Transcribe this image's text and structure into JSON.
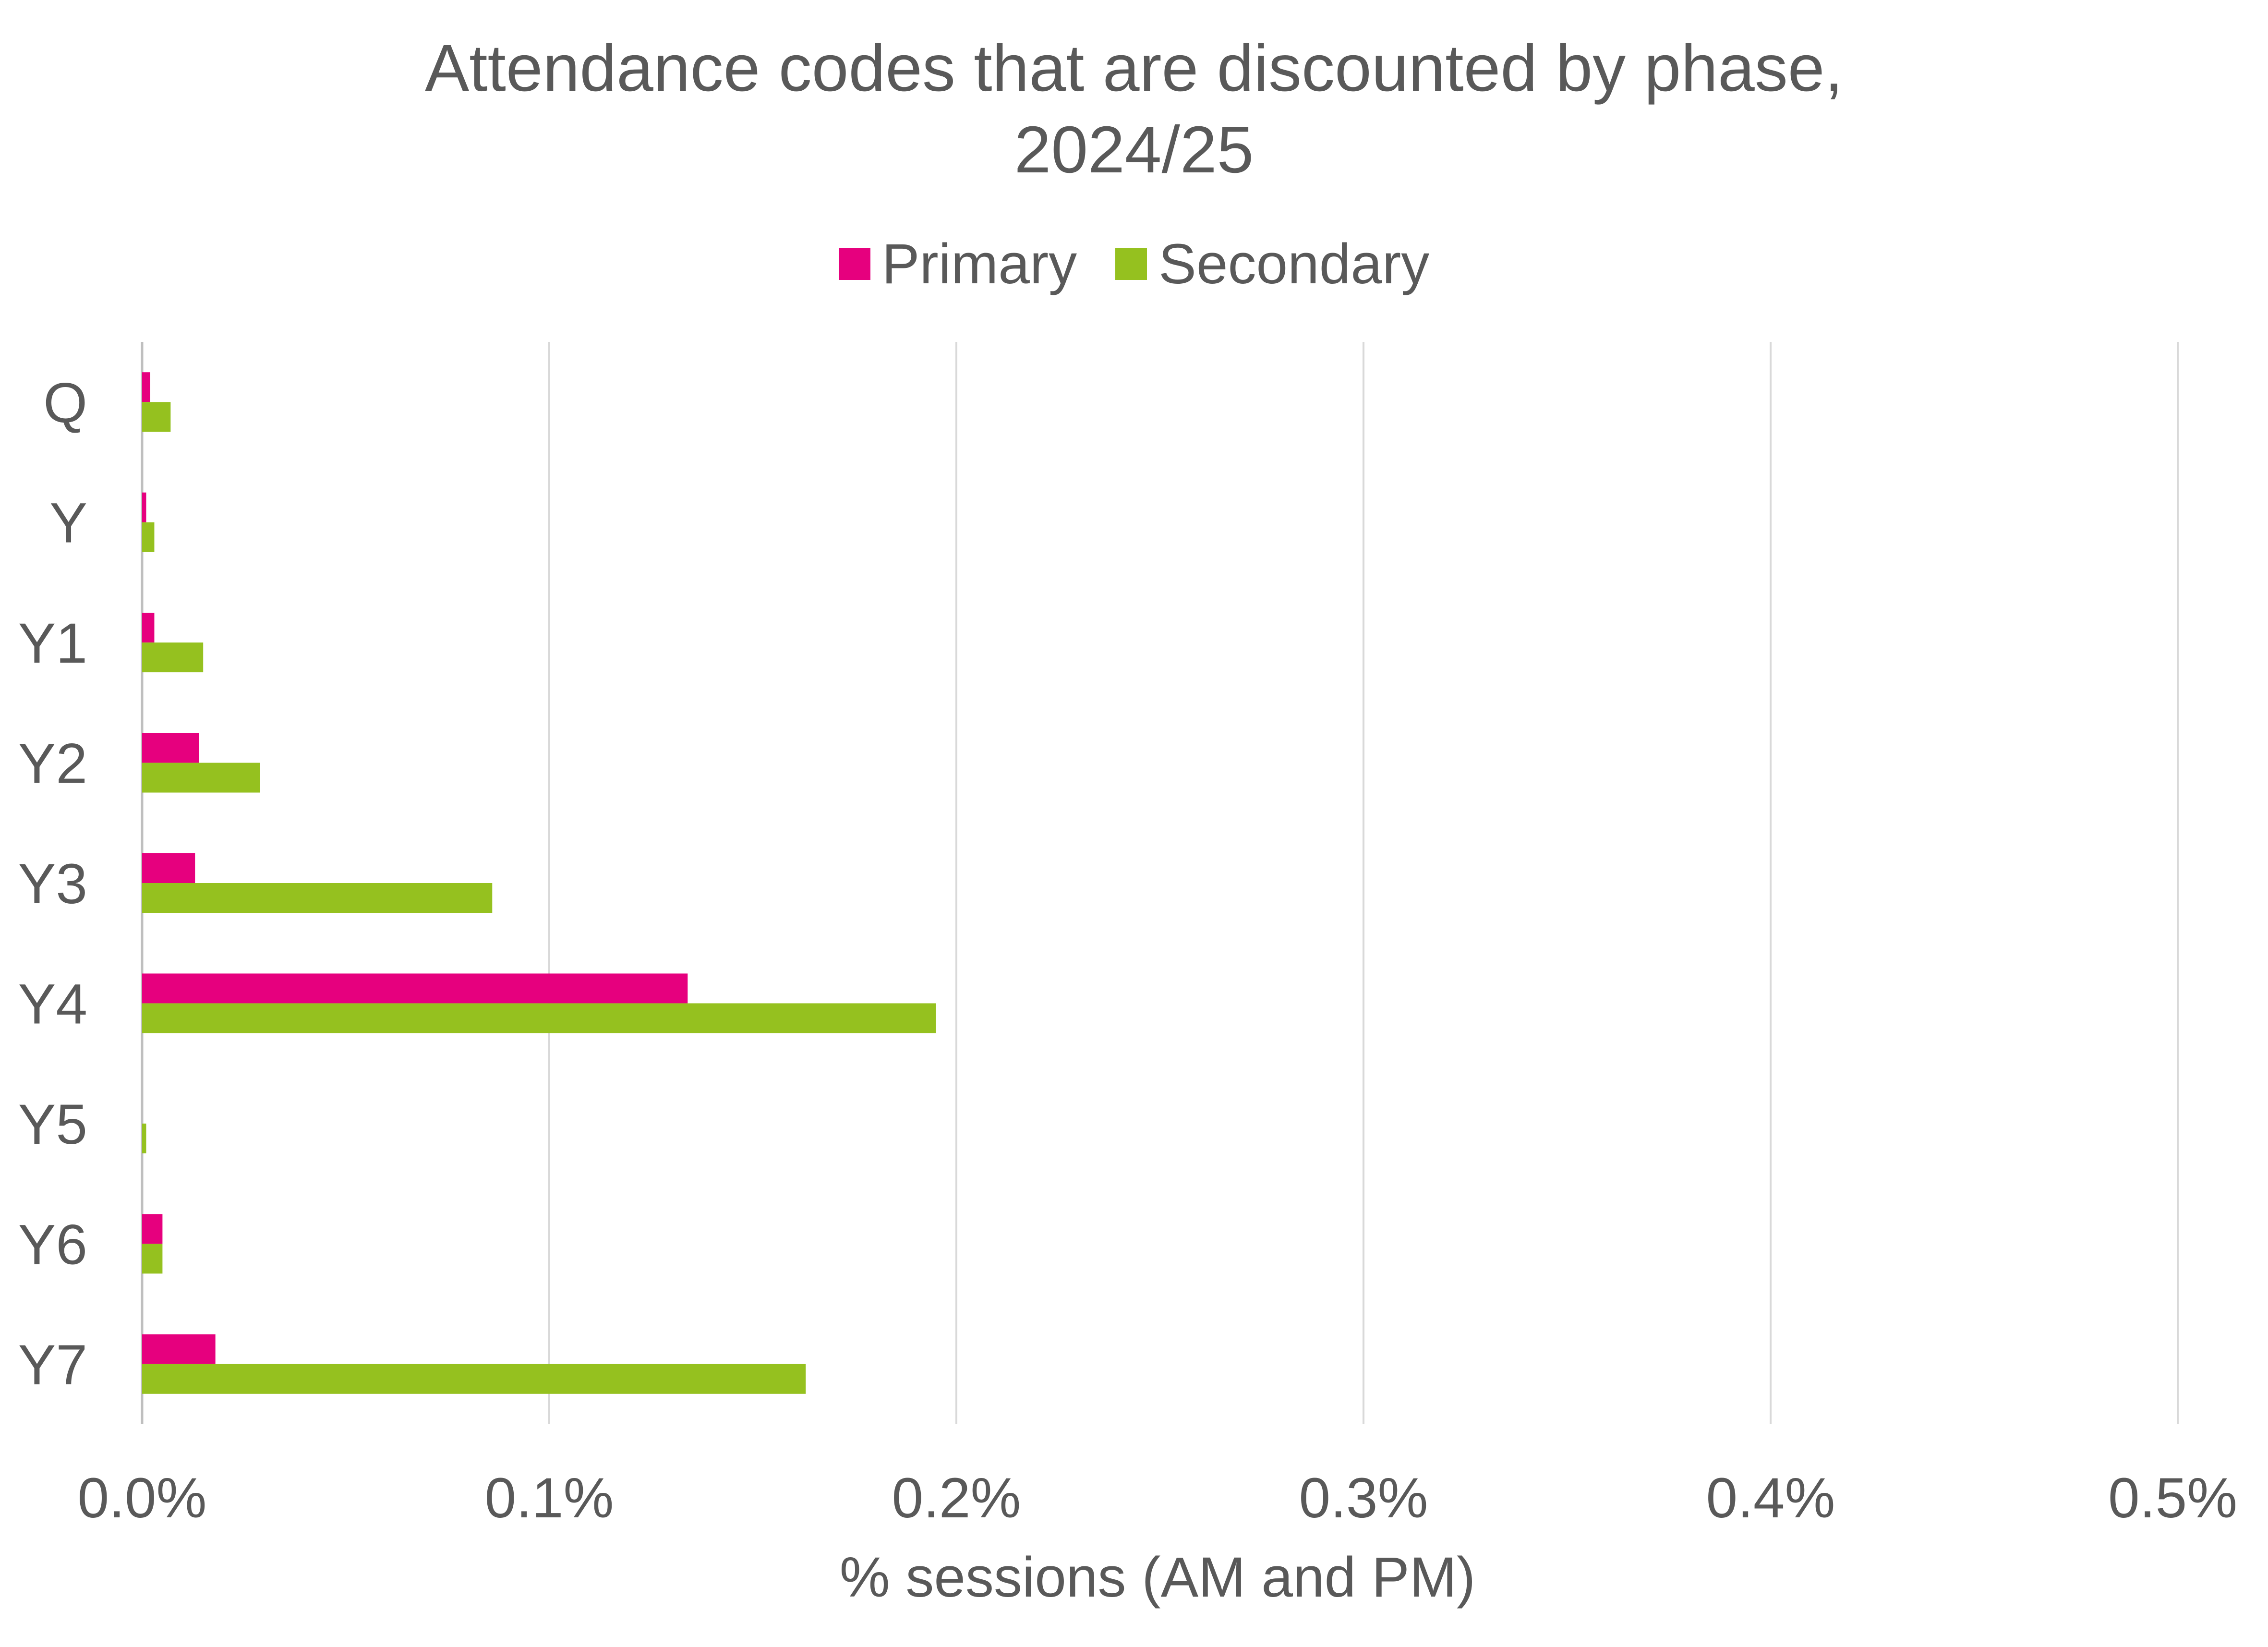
{
  "chart_data": {
    "type": "bar",
    "orientation": "horizontal",
    "title_lines": [
      "Attendance codes that are discounted by phase,",
      "2024/25"
    ],
    "xlabel": "% sessions (AM and PM)",
    "ylabel": "",
    "categories": [
      "Q",
      "Y",
      "Y1",
      "Y2",
      "Y3",
      "Y4",
      "Y5",
      "Y6",
      "Y7"
    ],
    "series": [
      {
        "name": "Primary",
        "color": "#e6007e",
        "values": [
          0.002,
          0.001,
          0.003,
          0.014,
          0.013,
          0.134,
          0.0,
          0.005,
          0.018
        ]
      },
      {
        "name": "Secondary",
        "color": "#95c11f",
        "values": [
          0.007,
          0.003,
          0.015,
          0.029,
          0.086,
          0.195,
          0.001,
          0.005,
          0.163
        ]
      }
    ],
    "xlim": [
      0,
      0.5
    ],
    "xticks": [
      "0.0%",
      "0.1%",
      "0.2%",
      "0.3%",
      "0.4%",
      "0.5%"
    ],
    "grid": "vertical gridlines",
    "legend_position": "top"
  }
}
